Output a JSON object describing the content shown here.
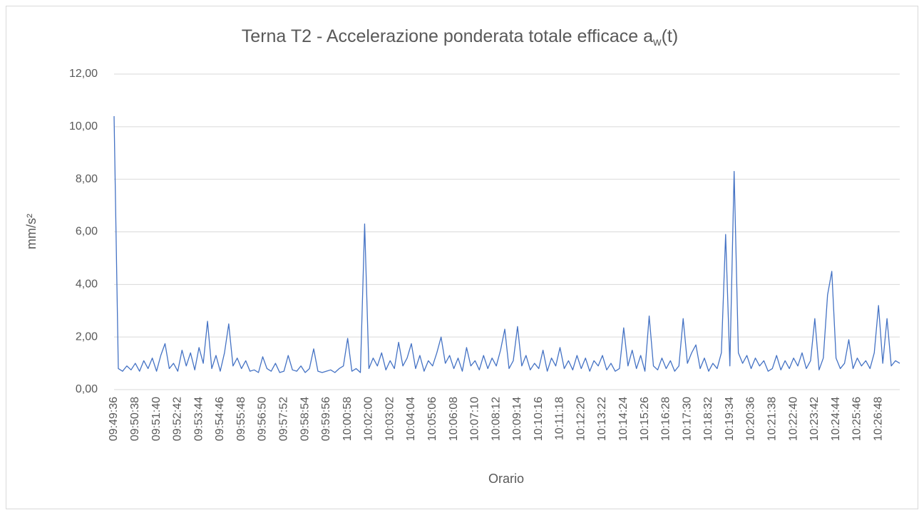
{
  "chart_data": {
    "type": "line",
    "title": [
      "Terna T2 - Accelerazione ponderata totale efficace a",
      "w",
      "(t)"
    ],
    "x_label": "Orario",
    "y_label": "mm/s²",
    "ylim": [
      0,
      12
    ],
    "yticks": [
      {
        "value": 0,
        "label": "0,00"
      },
      {
        "value": 2,
        "label": "2,00"
      },
      {
        "value": 4,
        "label": "4,00"
      },
      {
        "value": 6,
        "label": "6,00"
      },
      {
        "value": 8,
        "label": "8,00"
      },
      {
        "value": 10,
        "label": "10,00"
      },
      {
        "value": 12,
        "label": "12,00"
      }
    ],
    "grid": true,
    "categories": [
      "09:49:36",
      null,
      null,
      null,
      null,
      "09:50:38",
      null,
      null,
      null,
      null,
      "09:51:40",
      null,
      null,
      null,
      null,
      "09:52:42",
      null,
      null,
      null,
      null,
      "09:53:44",
      null,
      null,
      null,
      null,
      "09:54:46",
      null,
      null,
      null,
      null,
      "09:55:48",
      null,
      null,
      null,
      null,
      "09:56:50",
      null,
      null,
      null,
      null,
      "09:57:52",
      null,
      null,
      null,
      null,
      "09:58:54",
      null,
      null,
      null,
      null,
      "09:59:56",
      null,
      null,
      null,
      null,
      "10:00:58",
      null,
      null,
      null,
      null,
      "10:02:00",
      null,
      null,
      null,
      null,
      "10:03:02",
      null,
      null,
      null,
      null,
      "10:04:04",
      null,
      null,
      null,
      null,
      "10:05:06",
      null,
      null,
      null,
      null,
      "10:06:08",
      null,
      null,
      null,
      null,
      "10:07:10",
      null,
      null,
      null,
      null,
      "10:08:12",
      null,
      null,
      null,
      null,
      "10:09:14",
      null,
      null,
      null,
      null,
      "10:10:16",
      null,
      null,
      null,
      null,
      "10:11:18",
      null,
      null,
      null,
      null,
      "10:12:20",
      null,
      null,
      null,
      null,
      "10:13:22",
      null,
      null,
      null,
      null,
      "10:14:24",
      null,
      null,
      null,
      null,
      "10:15:26",
      null,
      null,
      null,
      null,
      "10:16:28",
      null,
      null,
      null,
      null,
      "10:17:30",
      null,
      null,
      null,
      null,
      "10:18:32",
      null,
      null,
      null,
      null,
      "10:19:34",
      null,
      null,
      null,
      null,
      "10:20:36",
      null,
      null,
      null,
      null,
      "10:21:38",
      null,
      null,
      null,
      null,
      "10:22:40",
      null,
      null,
      null,
      null,
      "10:23:42",
      null,
      null,
      null,
      null,
      "10:24:44",
      null,
      null,
      null,
      null,
      "10:25:46",
      null,
      null,
      null,
      null,
      "10:26:48",
      null,
      null,
      null,
      null,
      null
    ],
    "series": [
      {
        "name": "aw",
        "color": "#4472c4",
        "values": [
          10.4,
          0.8,
          0.7,
          0.9,
          0.75,
          1.0,
          0.7,
          1.1,
          0.8,
          1.2,
          0.7,
          1.3,
          1.75,
          0.8,
          1.0,
          0.7,
          1.5,
          0.9,
          1.4,
          0.75,
          1.6,
          1.0,
          2.6,
          0.8,
          1.3,
          0.7,
          1.4,
          2.5,
          0.9,
          1.2,
          0.8,
          1.1,
          0.7,
          0.75,
          0.65,
          1.25,
          0.8,
          0.7,
          1.0,
          0.65,
          0.7,
          1.3,
          0.75,
          0.7,
          0.9,
          0.65,
          0.8,
          1.55,
          0.7,
          0.65,
          0.7,
          0.75,
          0.65,
          0.8,
          0.9,
          1.95,
          0.7,
          0.8,
          0.65,
          6.3,
          0.8,
          1.2,
          0.9,
          1.4,
          0.75,
          1.1,
          0.8,
          1.8,
          0.9,
          1.2,
          1.75,
          0.8,
          1.3,
          0.7,
          1.1,
          0.9,
          1.4,
          2.0,
          1.0,
          1.3,
          0.8,
          1.2,
          0.7,
          1.6,
          0.9,
          1.1,
          0.75,
          1.3,
          0.8,
          1.2,
          0.9,
          1.5,
          2.3,
          0.8,
          1.1,
          2.4,
          0.9,
          1.3,
          0.75,
          1.0,
          0.8,
          1.5,
          0.7,
          1.2,
          0.9,
          1.6,
          0.8,
          1.1,
          0.75,
          1.3,
          0.8,
          1.2,
          0.7,
          1.1,
          0.9,
          1.3,
          0.75,
          1.0,
          0.7,
          0.8,
          2.35,
          0.9,
          1.5,
          0.8,
          1.3,
          0.7,
          2.8,
          0.9,
          0.75,
          1.2,
          0.8,
          1.1,
          0.7,
          0.9,
          2.7,
          1.0,
          1.4,
          1.7,
          0.8,
          1.2,
          0.7,
          1.0,
          0.8,
          1.4,
          5.9,
          0.9,
          8.3,
          1.4,
          1.0,
          1.3,
          0.8,
          1.2,
          0.9,
          1.1,
          0.7,
          0.8,
          1.3,
          0.75,
          1.1,
          0.8,
          1.2,
          0.9,
          1.4,
          0.8,
          1.1,
          2.7,
          0.75,
          1.2,
          3.6,
          4.5,
          1.2,
          0.8,
          1.0,
          1.9,
          0.8,
          1.2,
          0.9,
          1.1,
          0.8,
          1.4,
          3.2,
          1.0,
          2.7,
          0.9,
          1.1,
          1.0
        ]
      }
    ]
  }
}
